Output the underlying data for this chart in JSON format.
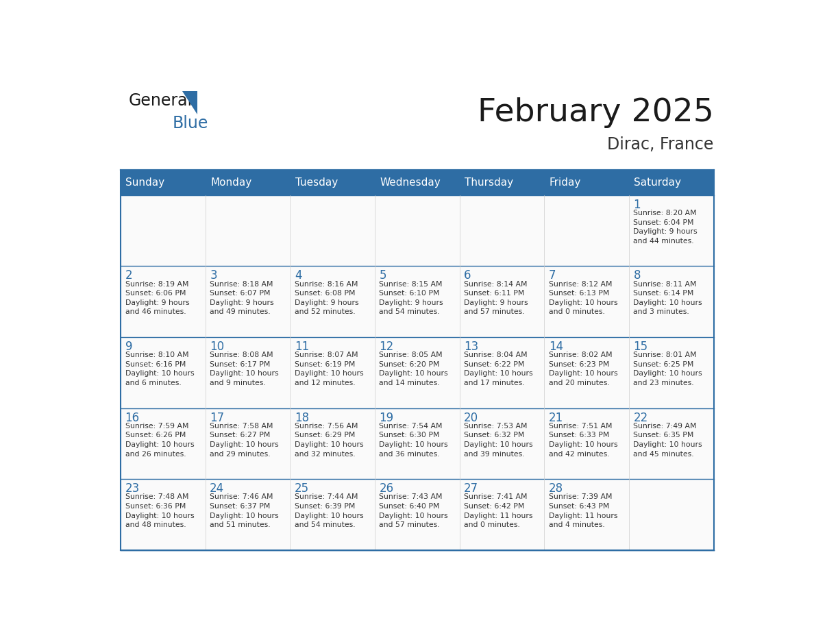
{
  "title": "February 2025",
  "subtitle": "Dirac, France",
  "header_color": "#2E6DA4",
  "header_text_color": "#FFFFFF",
  "cell_bg_color": "#FFFFFF",
  "border_color": "#2E6DA4",
  "day_number_color": "#2E6DA4",
  "text_color": "#333333",
  "days_of_week": [
    "Sunday",
    "Monday",
    "Tuesday",
    "Wednesday",
    "Thursday",
    "Friday",
    "Saturday"
  ],
  "weeks": [
    [
      {
        "day": null,
        "info": ""
      },
      {
        "day": null,
        "info": ""
      },
      {
        "day": null,
        "info": ""
      },
      {
        "day": null,
        "info": ""
      },
      {
        "day": null,
        "info": ""
      },
      {
        "day": null,
        "info": ""
      },
      {
        "day": 1,
        "info": "Sunrise: 8:20 AM\nSunset: 6:04 PM\nDaylight: 9 hours\nand 44 minutes."
      }
    ],
    [
      {
        "day": 2,
        "info": "Sunrise: 8:19 AM\nSunset: 6:06 PM\nDaylight: 9 hours\nand 46 minutes."
      },
      {
        "day": 3,
        "info": "Sunrise: 8:18 AM\nSunset: 6:07 PM\nDaylight: 9 hours\nand 49 minutes."
      },
      {
        "day": 4,
        "info": "Sunrise: 8:16 AM\nSunset: 6:08 PM\nDaylight: 9 hours\nand 52 minutes."
      },
      {
        "day": 5,
        "info": "Sunrise: 8:15 AM\nSunset: 6:10 PM\nDaylight: 9 hours\nand 54 minutes."
      },
      {
        "day": 6,
        "info": "Sunrise: 8:14 AM\nSunset: 6:11 PM\nDaylight: 9 hours\nand 57 minutes."
      },
      {
        "day": 7,
        "info": "Sunrise: 8:12 AM\nSunset: 6:13 PM\nDaylight: 10 hours\nand 0 minutes."
      },
      {
        "day": 8,
        "info": "Sunrise: 8:11 AM\nSunset: 6:14 PM\nDaylight: 10 hours\nand 3 minutes."
      }
    ],
    [
      {
        "day": 9,
        "info": "Sunrise: 8:10 AM\nSunset: 6:16 PM\nDaylight: 10 hours\nand 6 minutes."
      },
      {
        "day": 10,
        "info": "Sunrise: 8:08 AM\nSunset: 6:17 PM\nDaylight: 10 hours\nand 9 minutes."
      },
      {
        "day": 11,
        "info": "Sunrise: 8:07 AM\nSunset: 6:19 PM\nDaylight: 10 hours\nand 12 minutes."
      },
      {
        "day": 12,
        "info": "Sunrise: 8:05 AM\nSunset: 6:20 PM\nDaylight: 10 hours\nand 14 minutes."
      },
      {
        "day": 13,
        "info": "Sunrise: 8:04 AM\nSunset: 6:22 PM\nDaylight: 10 hours\nand 17 minutes."
      },
      {
        "day": 14,
        "info": "Sunrise: 8:02 AM\nSunset: 6:23 PM\nDaylight: 10 hours\nand 20 minutes."
      },
      {
        "day": 15,
        "info": "Sunrise: 8:01 AM\nSunset: 6:25 PM\nDaylight: 10 hours\nand 23 minutes."
      }
    ],
    [
      {
        "day": 16,
        "info": "Sunrise: 7:59 AM\nSunset: 6:26 PM\nDaylight: 10 hours\nand 26 minutes."
      },
      {
        "day": 17,
        "info": "Sunrise: 7:58 AM\nSunset: 6:27 PM\nDaylight: 10 hours\nand 29 minutes."
      },
      {
        "day": 18,
        "info": "Sunrise: 7:56 AM\nSunset: 6:29 PM\nDaylight: 10 hours\nand 32 minutes."
      },
      {
        "day": 19,
        "info": "Sunrise: 7:54 AM\nSunset: 6:30 PM\nDaylight: 10 hours\nand 36 minutes."
      },
      {
        "day": 20,
        "info": "Sunrise: 7:53 AM\nSunset: 6:32 PM\nDaylight: 10 hours\nand 39 minutes."
      },
      {
        "day": 21,
        "info": "Sunrise: 7:51 AM\nSunset: 6:33 PM\nDaylight: 10 hours\nand 42 minutes."
      },
      {
        "day": 22,
        "info": "Sunrise: 7:49 AM\nSunset: 6:35 PM\nDaylight: 10 hours\nand 45 minutes."
      }
    ],
    [
      {
        "day": 23,
        "info": "Sunrise: 7:48 AM\nSunset: 6:36 PM\nDaylight: 10 hours\nand 48 minutes."
      },
      {
        "day": 24,
        "info": "Sunrise: 7:46 AM\nSunset: 6:37 PM\nDaylight: 10 hours\nand 51 minutes."
      },
      {
        "day": 25,
        "info": "Sunrise: 7:44 AM\nSunset: 6:39 PM\nDaylight: 10 hours\nand 54 minutes."
      },
      {
        "day": 26,
        "info": "Sunrise: 7:43 AM\nSunset: 6:40 PM\nDaylight: 10 hours\nand 57 minutes."
      },
      {
        "day": 27,
        "info": "Sunrise: 7:41 AM\nSunset: 6:42 PM\nDaylight: 11 hours\nand 0 minutes."
      },
      {
        "day": 28,
        "info": "Sunrise: 7:39 AM\nSunset: 6:43 PM\nDaylight: 11 hours\nand 4 minutes."
      },
      {
        "day": null,
        "info": ""
      }
    ]
  ]
}
